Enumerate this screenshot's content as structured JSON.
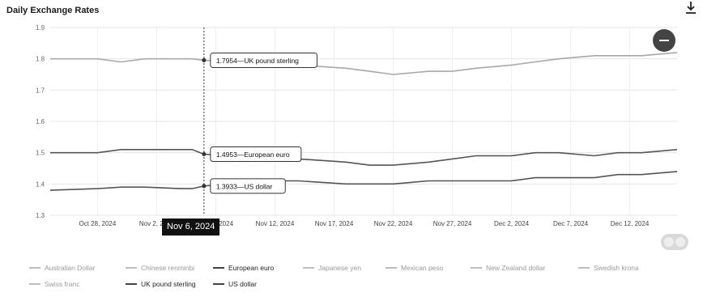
{
  "header": {
    "title": "Daily Exchange Rates"
  },
  "icons": {
    "download": "download-icon",
    "zoom_out": "minus-icon",
    "scroll": "scroll-toggle-icon"
  },
  "colors": {
    "active_line": "#555555",
    "inactive_legend": "#aaaaaa",
    "tooltip_bg": "#111111"
  },
  "hover_label": "Nov 6, 2024",
  "chart_data": {
    "type": "line",
    "title": "Daily Exchange Rates",
    "xlabel": "",
    "ylabel": "",
    "ylim": [
      1.3,
      1.9
    ],
    "ytick_labels": [
      {
        "value": 1.9,
        "label": "1.9"
      },
      {
        "value": 1.8,
        "label": "1.8"
      },
      {
        "value": 1.7,
        "label": "1.7"
      },
      {
        "value": 1.6,
        "label": "1.6"
      },
      {
        "value": 1.5,
        "label": "1.5"
      },
      {
        "value": 1.4,
        "label": "1.4"
      },
      {
        "value": 1.3,
        "label": "1.3"
      }
    ],
    "x_range": [
      "2024-10-24",
      "2024-12-16"
    ],
    "xtick_labels": [
      "Oct 28, 2024",
      "Nov 2, 2024",
      "Nov 7, 2024",
      "Nov 12, 2024",
      "Nov 17, 2024",
      "Nov 22, 2024",
      "Nov 27, 2024",
      "Dec 2, 2024",
      "Dec 7, 2024",
      "Dec 12, 2024"
    ],
    "xtick_dates": [
      "2024-10-28",
      "2024-11-02",
      "2024-11-07",
      "2024-11-12",
      "2024-11-17",
      "2024-11-22",
      "2024-11-27",
      "2024-12-02",
      "2024-12-07",
      "2024-12-12"
    ],
    "crosshair_date": "2024-11-06",
    "grid": true,
    "legend_position": "bottom",
    "tooltips": [
      {
        "series": "UK pound sterling",
        "value": 1.7954,
        "label": "1.7954—UK pound sterling"
      },
      {
        "series": "European euro",
        "value": 1.4953,
        "label": "1.4953—European euro"
      },
      {
        "series": "US dollar",
        "value": 1.3933,
        "label": "1.3933—US dollar"
      }
    ],
    "series": [
      {
        "name": "UK pound sterling",
        "visible": true,
        "dates": [
          "2024-10-24",
          "2024-10-28",
          "2024-10-30",
          "2024-11-01",
          "2024-11-04",
          "2024-11-05",
          "2024-11-06",
          "2024-11-08",
          "2024-11-12",
          "2024-11-14",
          "2024-11-18",
          "2024-11-20",
          "2024-11-22",
          "2024-11-25",
          "2024-11-27",
          "2024-11-29",
          "2024-12-02",
          "2024-12-04",
          "2024-12-06",
          "2024-12-09",
          "2024-12-11",
          "2024-12-13",
          "2024-12-16"
        ],
        "values": [
          1.8,
          1.8,
          1.79,
          1.8,
          1.8,
          1.8,
          1.7954,
          1.79,
          1.78,
          1.78,
          1.77,
          1.76,
          1.75,
          1.76,
          1.76,
          1.77,
          1.78,
          1.79,
          1.8,
          1.81,
          1.81,
          1.81,
          1.82
        ]
      },
      {
        "name": "European euro",
        "visible": true,
        "dates": [
          "2024-10-24",
          "2024-10-28",
          "2024-10-30",
          "2024-11-01",
          "2024-11-04",
          "2024-11-05",
          "2024-11-06",
          "2024-11-08",
          "2024-11-12",
          "2024-11-14",
          "2024-11-18",
          "2024-11-20",
          "2024-11-22",
          "2024-11-25",
          "2024-11-27",
          "2024-11-29",
          "2024-12-02",
          "2024-12-04",
          "2024-12-06",
          "2024-12-09",
          "2024-12-11",
          "2024-12-13",
          "2024-12-16"
        ],
        "values": [
          1.5,
          1.5,
          1.51,
          1.51,
          1.51,
          1.51,
          1.4953,
          1.49,
          1.49,
          1.48,
          1.47,
          1.46,
          1.46,
          1.47,
          1.48,
          1.49,
          1.49,
          1.5,
          1.5,
          1.49,
          1.5,
          1.5,
          1.51
        ]
      },
      {
        "name": "US dollar",
        "visible": true,
        "dates": [
          "2024-10-24",
          "2024-10-28",
          "2024-10-30",
          "2024-11-01",
          "2024-11-04",
          "2024-11-05",
          "2024-11-06",
          "2024-11-08",
          "2024-11-12",
          "2024-11-14",
          "2024-11-18",
          "2024-11-20",
          "2024-11-22",
          "2024-11-25",
          "2024-11-27",
          "2024-11-29",
          "2024-12-02",
          "2024-12-04",
          "2024-12-06",
          "2024-12-09",
          "2024-12-11",
          "2024-12-13",
          "2024-12-16"
        ],
        "values": [
          1.38,
          1.385,
          1.39,
          1.39,
          1.385,
          1.385,
          1.3933,
          1.4,
          1.41,
          1.41,
          1.4,
          1.4,
          1.4,
          1.41,
          1.41,
          1.41,
          1.41,
          1.42,
          1.42,
          1.42,
          1.43,
          1.43,
          1.44
        ]
      }
    ],
    "legend": [
      {
        "name": "Australian Dollar",
        "visible": false
      },
      {
        "name": "Chinese renminbi",
        "visible": false
      },
      {
        "name": "European euro",
        "visible": true
      },
      {
        "name": "Japanese yen",
        "visible": false
      },
      {
        "name": "Mexican peso",
        "visible": false
      },
      {
        "name": "New Zealand dollar",
        "visible": false
      },
      {
        "name": "Swedish krona",
        "visible": false
      },
      {
        "name": "Swiss franc",
        "visible": false
      },
      {
        "name": "UK pound sterling",
        "visible": true
      },
      {
        "name": "US dollar",
        "visible": true
      }
    ]
  }
}
